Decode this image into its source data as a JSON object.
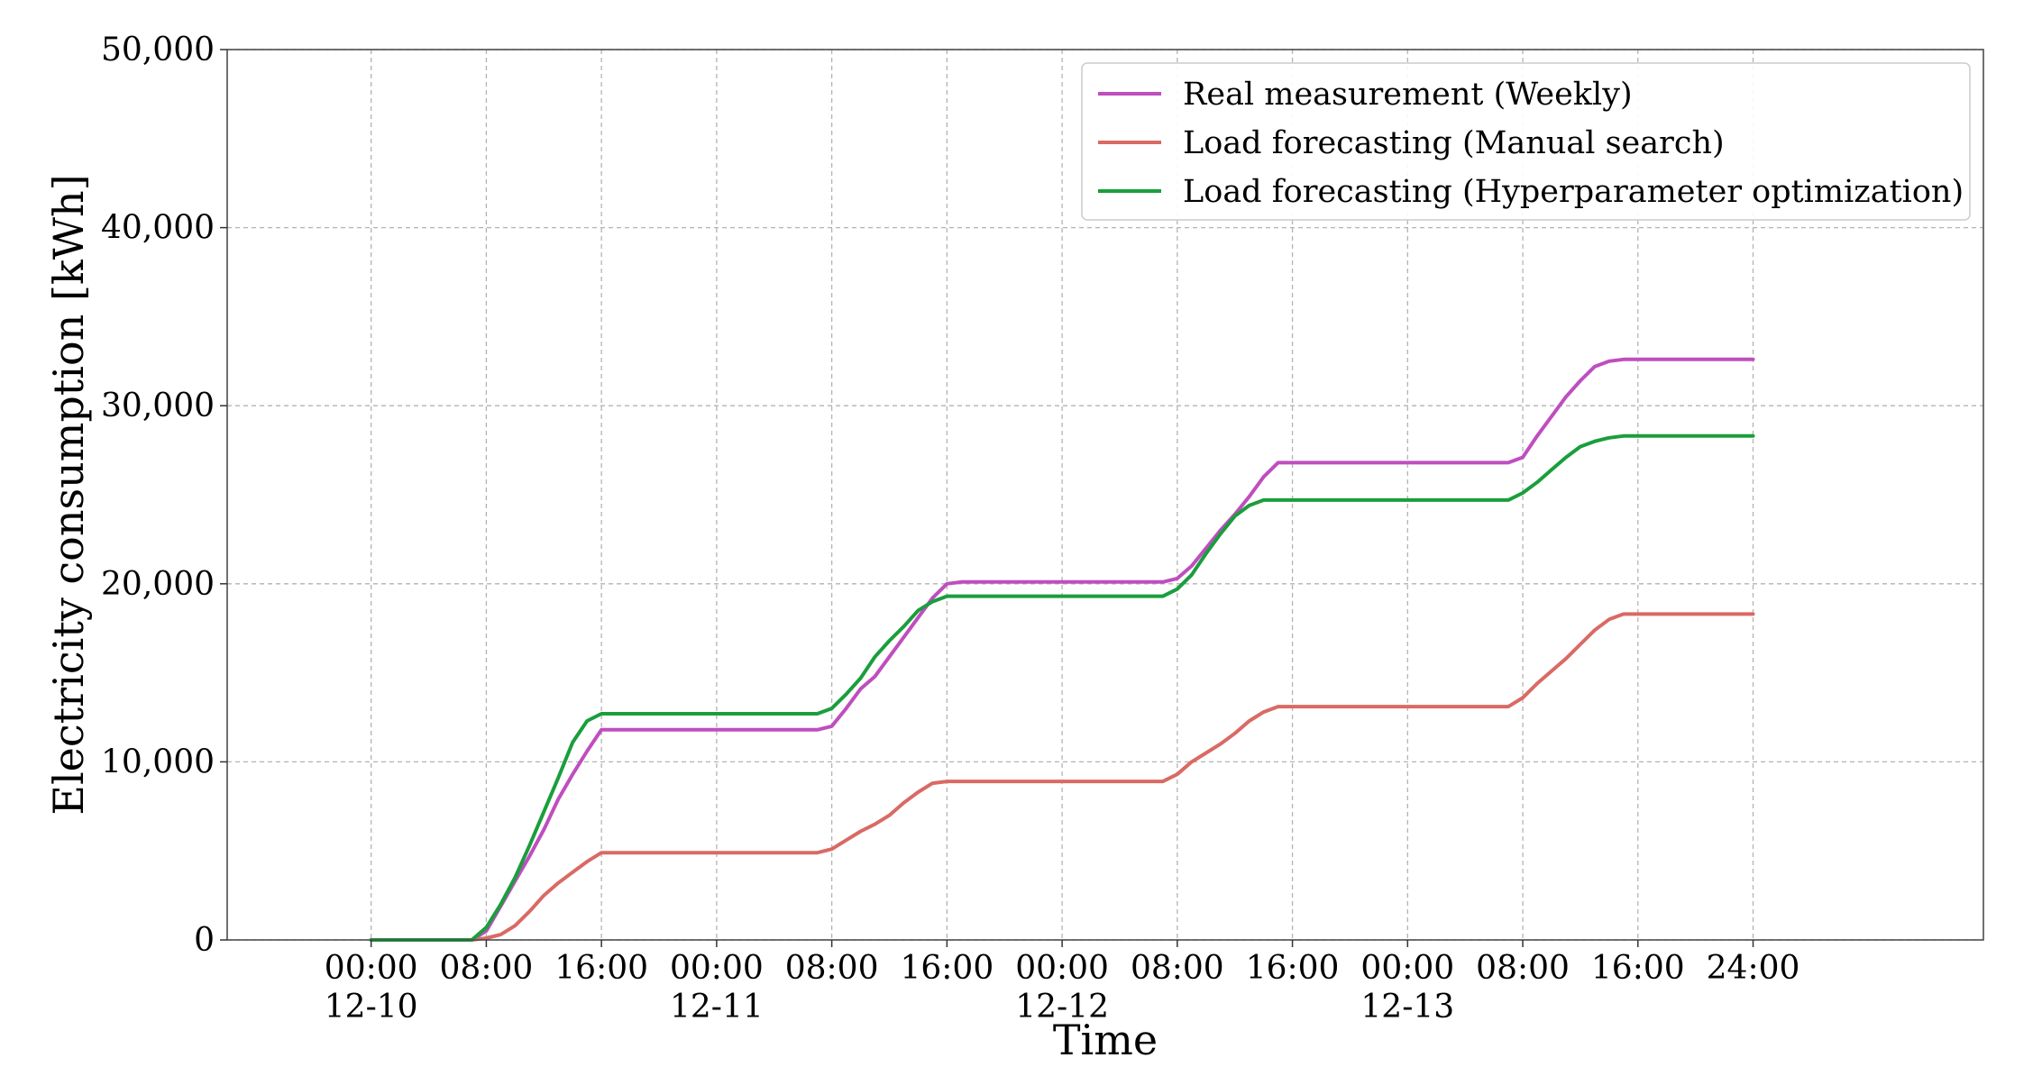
{
  "chart_data": {
    "type": "line",
    "xlabel": "Time",
    "ylabel": "Electricity consumption [kWh]",
    "x_unit": "hours",
    "xlim": [
      -10,
      112
    ],
    "ylim": [
      0,
      50000
    ],
    "grid": true,
    "legend_position": "top-right",
    "x_ticks": [
      {
        "value": 0,
        "line1": "00:00",
        "line2": "12-10"
      },
      {
        "value": 8,
        "line1": "08:00",
        "line2": ""
      },
      {
        "value": 16,
        "line1": "16:00",
        "line2": ""
      },
      {
        "value": 24,
        "line1": "00:00",
        "line2": "12-11"
      },
      {
        "value": 32,
        "line1": "08:00",
        "line2": ""
      },
      {
        "value": 40,
        "line1": "16:00",
        "line2": ""
      },
      {
        "value": 48,
        "line1": "00:00",
        "line2": "12-12"
      },
      {
        "value": 56,
        "line1": "08:00",
        "line2": ""
      },
      {
        "value": 64,
        "line1": "16:00",
        "line2": ""
      },
      {
        "value": 72,
        "line1": "00:00",
        "line2": "12-13"
      },
      {
        "value": 80,
        "line1": "08:00",
        "line2": ""
      },
      {
        "value": 88,
        "line1": "16:00",
        "line2": ""
      },
      {
        "value": 96,
        "line1": "24:00",
        "line2": ""
      }
    ],
    "y_ticks": [
      {
        "value": 0,
        "label": "0"
      },
      {
        "value": 10000,
        "label": "10,000"
      },
      {
        "value": 20000,
        "label": "20,000"
      },
      {
        "value": 30000,
        "label": "30,000"
      },
      {
        "value": 40000,
        "label": "40,000"
      },
      {
        "value": 50000,
        "label": "50,000"
      }
    ],
    "series": [
      {
        "name": "Real measurement (Weekly)",
        "color": "#bf4ebf",
        "points": [
          [
            0,
            0
          ],
          [
            7,
            0
          ],
          [
            8,
            500
          ],
          [
            9,
            1900
          ],
          [
            10,
            3300
          ],
          [
            11,
            4700
          ],
          [
            12,
            6200
          ],
          [
            13,
            7900
          ],
          [
            14,
            9300
          ],
          [
            15,
            10600
          ],
          [
            16,
            11800
          ],
          [
            17,
            11800
          ],
          [
            31,
            11800
          ],
          [
            32,
            12000
          ],
          [
            33,
            13000
          ],
          [
            34,
            14100
          ],
          [
            35,
            14800
          ],
          [
            36,
            15900
          ],
          [
            37,
            17000
          ],
          [
            38,
            18100
          ],
          [
            39,
            19200
          ],
          [
            40,
            20000
          ],
          [
            41,
            20100
          ],
          [
            55,
            20100
          ],
          [
            56,
            20300
          ],
          [
            57,
            21000
          ],
          [
            58,
            22000
          ],
          [
            59,
            23000
          ],
          [
            60,
            23900
          ],
          [
            61,
            24900
          ],
          [
            62,
            26000
          ],
          [
            63,
            26800
          ],
          [
            64,
            26800
          ],
          [
            79,
            26800
          ],
          [
            80,
            27100
          ],
          [
            81,
            28300
          ],
          [
            82,
            29400
          ],
          [
            83,
            30500
          ],
          [
            84,
            31400
          ],
          [
            85,
            32200
          ],
          [
            86,
            32500
          ],
          [
            87,
            32600
          ],
          [
            96,
            32600
          ]
        ]
      },
      {
        "name": "Load forecasting (Manual search)",
        "color": "#d96a64",
        "points": [
          [
            0,
            0
          ],
          [
            7,
            0
          ],
          [
            8,
            100
          ],
          [
            9,
            300
          ],
          [
            10,
            800
          ],
          [
            11,
            1600
          ],
          [
            12,
            2500
          ],
          [
            13,
            3200
          ],
          [
            14,
            3800
          ],
          [
            15,
            4400
          ],
          [
            16,
            4900
          ],
          [
            31,
            4900
          ],
          [
            32,
            5100
          ],
          [
            33,
            5600
          ],
          [
            34,
            6100
          ],
          [
            35,
            6500
          ],
          [
            36,
            7000
          ],
          [
            37,
            7700
          ],
          [
            38,
            8300
          ],
          [
            39,
            8800
          ],
          [
            40,
            8900
          ],
          [
            55,
            8900
          ],
          [
            56,
            9300
          ],
          [
            57,
            10000
          ],
          [
            58,
            10500
          ],
          [
            59,
            11000
          ],
          [
            60,
            11600
          ],
          [
            61,
            12300
          ],
          [
            62,
            12800
          ],
          [
            63,
            13100
          ],
          [
            79,
            13100
          ],
          [
            80,
            13600
          ],
          [
            81,
            14400
          ],
          [
            82,
            15100
          ],
          [
            83,
            15800
          ],
          [
            84,
            16600
          ],
          [
            85,
            17400
          ],
          [
            86,
            18000
          ],
          [
            87,
            18300
          ],
          [
            96,
            18300
          ]
        ]
      },
      {
        "name": "Load forecasting (Hyperparameter optimization)",
        "color": "#1a9e3c",
        "points": [
          [
            0,
            0
          ],
          [
            7,
            0
          ],
          [
            8,
            700
          ],
          [
            9,
            2000
          ],
          [
            10,
            3500
          ],
          [
            11,
            5300
          ],
          [
            12,
            7200
          ],
          [
            13,
            9100
          ],
          [
            14,
            11100
          ],
          [
            15,
            12300
          ],
          [
            16,
            12700
          ],
          [
            31,
            12700
          ],
          [
            32,
            13000
          ],
          [
            33,
            13800
          ],
          [
            34,
            14700
          ],
          [
            35,
            15900
          ],
          [
            36,
            16800
          ],
          [
            37,
            17600
          ],
          [
            38,
            18500
          ],
          [
            39,
            19000
          ],
          [
            40,
            19300
          ],
          [
            55,
            19300
          ],
          [
            56,
            19700
          ],
          [
            57,
            20500
          ],
          [
            58,
            21700
          ],
          [
            59,
            22800
          ],
          [
            60,
            23800
          ],
          [
            61,
            24400
          ],
          [
            62,
            24700
          ],
          [
            79,
            24700
          ],
          [
            80,
            25100
          ],
          [
            81,
            25700
          ],
          [
            82,
            26400
          ],
          [
            83,
            27100
          ],
          [
            84,
            27700
          ],
          [
            85,
            28000
          ],
          [
            86,
            28200
          ],
          [
            87,
            28300
          ],
          [
            96,
            28300
          ]
        ]
      }
    ]
  }
}
